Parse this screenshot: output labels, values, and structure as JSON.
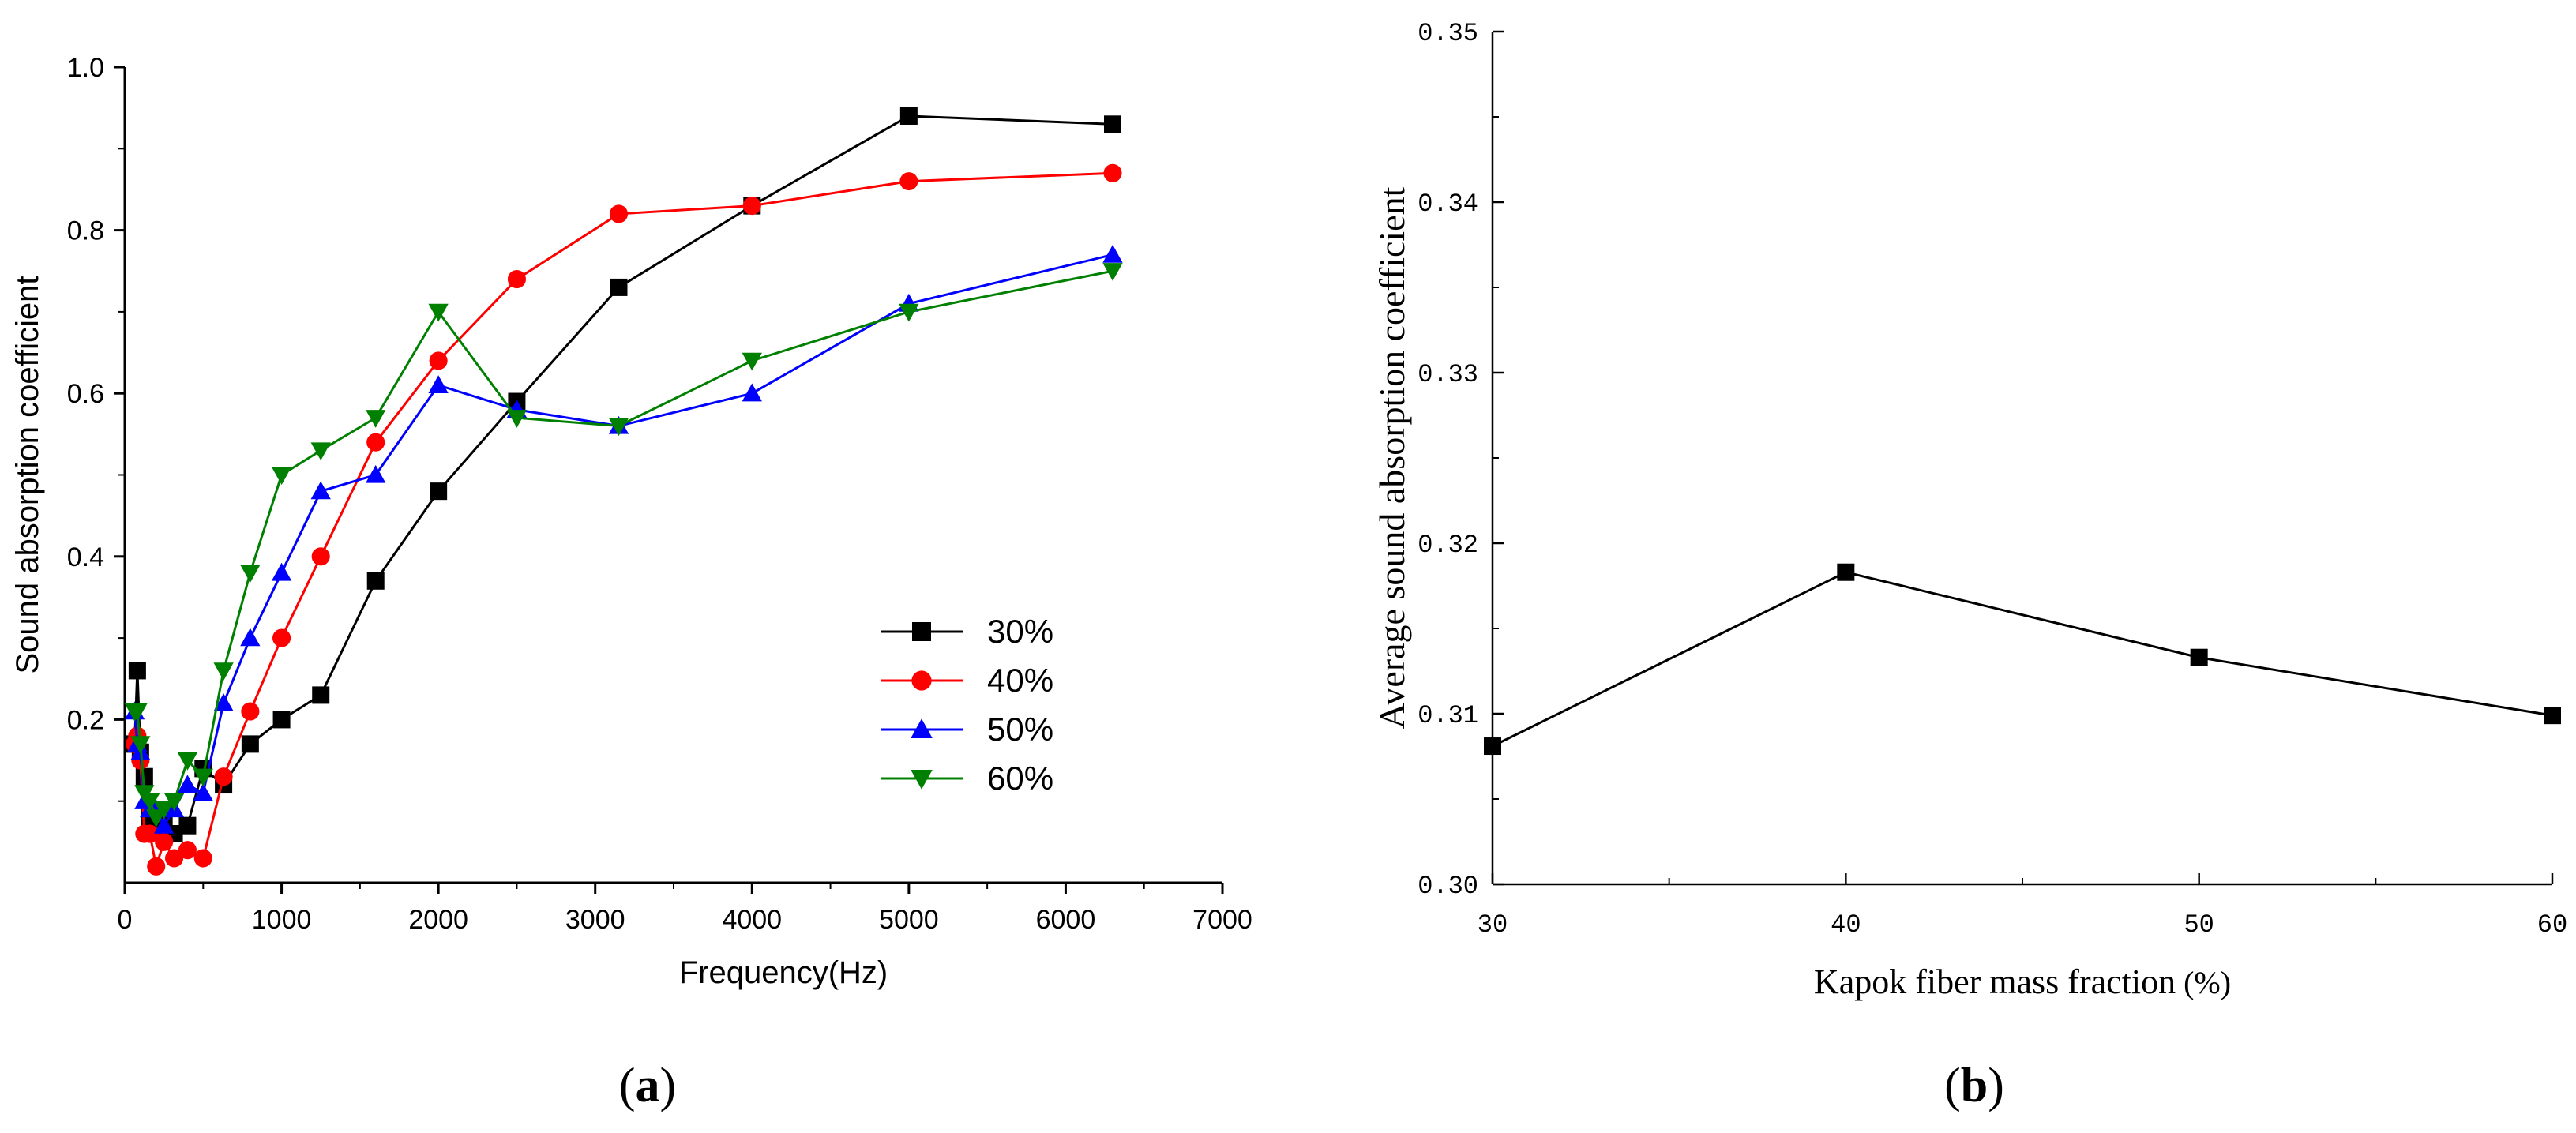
{
  "figure": {
    "panel_a_label": "a",
    "panel_b_label": "b"
  },
  "chart_data": [
    {
      "panel": "a",
      "type": "line",
      "xlabel": "Frequency(Hz)",
      "ylabel": "Sound absorption coefficient",
      "xlim": [
        0,
        7000
      ],
      "ylim": [
        0,
        1.0
      ],
      "x_ticks": [
        0,
        1000,
        2000,
        3000,
        4000,
        5000,
        6000,
        7000
      ],
      "x_tick_labels": [
        "0",
        "1000",
        "2000",
        "3000",
        "4000",
        "5000",
        "6000",
        "7000"
      ],
      "y_ticks": [
        0.2,
        0.4,
        0.6,
        0.8,
        1.0
      ],
      "y_tick_labels": [
        "0.2",
        "0.4",
        "0.6",
        "0.8",
        "1.0"
      ],
      "legend_position": "lower-right",
      "series": [
        {
          "name": "30%",
          "color": "#000000",
          "marker": "square",
          "x": [
            63,
            80,
            100,
            125,
            160,
            200,
            250,
            315,
            400,
            500,
            630,
            800,
            1000,
            1250,
            1600,
            2000,
            2500,
            3150,
            4000,
            5000,
            6300
          ],
          "y": [
            0.17,
            0.26,
            0.16,
            0.13,
            0.08,
            0.07,
            0.08,
            0.06,
            0.07,
            0.14,
            0.12,
            0.17,
            0.2,
            0.23,
            0.37,
            0.48,
            0.59,
            0.73,
            0.83,
            0.94,
            0.93
          ]
        },
        {
          "name": "40%",
          "color": "#ff0000",
          "marker": "circle",
          "x": [
            63,
            80,
            100,
            125,
            160,
            200,
            250,
            315,
            400,
            500,
            630,
            800,
            1000,
            1250,
            1600,
            2000,
            2500,
            3150,
            4000,
            5000,
            6300
          ],
          "y": [
            0.17,
            0.18,
            0.15,
            0.06,
            0.06,
            0.02,
            0.05,
            0.03,
            0.04,
            0.03,
            0.13,
            0.21,
            0.3,
            0.4,
            0.54,
            0.64,
            0.74,
            0.82,
            0.83,
            0.86,
            0.87
          ]
        },
        {
          "name": "50%",
          "color": "#0000ff",
          "marker": "triangle-up",
          "x": [
            63,
            80,
            100,
            125,
            160,
            200,
            250,
            315,
            400,
            500,
            630,
            800,
            1000,
            1250,
            1600,
            2000,
            2500,
            3150,
            4000,
            5000,
            6300
          ],
          "y": [
            0.21,
            0.17,
            0.16,
            0.1,
            0.09,
            0.09,
            0.07,
            0.09,
            0.12,
            0.11,
            0.22,
            0.3,
            0.38,
            0.48,
            0.5,
            0.61,
            0.58,
            0.56,
            0.6,
            0.71,
            0.77
          ]
        },
        {
          "name": "60%",
          "color": "#008000",
          "marker": "triangle-down",
          "x": [
            63,
            80,
            100,
            125,
            160,
            200,
            250,
            315,
            400,
            500,
            630,
            800,
            1000,
            1250,
            1600,
            2000,
            2500,
            3150,
            4000,
            5000,
            6300
          ],
          "y": [
            0.21,
            0.21,
            0.17,
            0.11,
            0.1,
            0.08,
            0.09,
            0.1,
            0.15,
            0.13,
            0.26,
            0.38,
            0.5,
            0.53,
            0.57,
            0.7,
            0.57,
            0.56,
            0.64,
            0.7,
            0.75
          ]
        }
      ]
    },
    {
      "panel": "b",
      "type": "line",
      "xlabel": "Kapok fiber mass fraction",
      "xlabel_unit": "(%)",
      "ylabel": "Average sound absorption coefficient",
      "xlim": [
        30,
        60
      ],
      "ylim": [
        0.3,
        0.35
      ],
      "x_ticks": [
        30,
        40,
        50,
        60
      ],
      "x_tick_labels": [
        "30",
        "40",
        "50",
        "60"
      ],
      "y_ticks": [
        0.3,
        0.31,
        0.32,
        0.33,
        0.34,
        0.35
      ],
      "y_tick_labels": [
        "0.30",
        "0.31",
        "0.32",
        "0.33",
        "0.34",
        "0.35"
      ],
      "series": [
        {
          "name": "Average sound absorption coefficient",
          "color": "#000000",
          "marker": "square",
          "x": [
            30,
            40,
            50,
            60
          ],
          "y": [
            0.3081,
            0.3183,
            0.3133,
            0.3099
          ]
        }
      ]
    }
  ]
}
